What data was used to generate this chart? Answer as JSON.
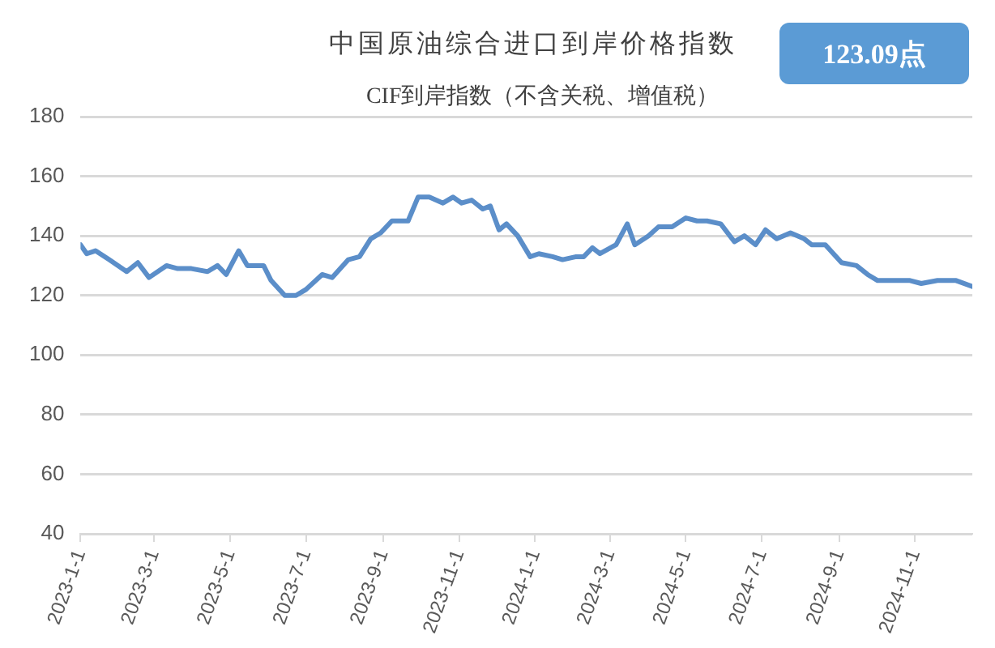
{
  "chart_data": {
    "type": "line",
    "title": "中国原油综合进口到岸价格指数",
    "subtitle": "CIF到岸指数（不含关税、增值税）",
    "annotations": [
      "123.09点"
    ],
    "x": [
      "2023-01-01",
      "2023-01-06",
      "2023-01-13",
      "2023-01-24",
      "2023-02-07",
      "2023-02-16",
      "2023-02-25",
      "2023-03-11",
      "2023-03-20",
      "2023-03-31",
      "2023-04-13",
      "2023-04-21",
      "2023-04-28",
      "2023-05-08",
      "2023-05-15",
      "2023-05-28",
      "2023-06-03",
      "2023-06-14",
      "2023-06-23",
      "2023-07-01",
      "2023-07-14",
      "2023-07-22",
      "2023-08-04",
      "2023-08-13",
      "2023-08-22",
      "2023-08-30",
      "2023-09-08",
      "2023-09-21",
      "2023-09-29",
      "2023-10-08",
      "2023-10-19",
      "2023-10-27",
      "2023-11-03",
      "2023-11-11",
      "2023-11-20",
      "2023-11-26",
      "2023-12-03",
      "2023-12-09",
      "2023-12-18",
      "2023-12-28",
      "2024-01-04",
      "2024-01-15",
      "2024-01-23",
      "2024-02-03",
      "2024-02-09",
      "2024-02-16",
      "2024-02-22",
      "2024-03-06",
      "2024-03-15",
      "2024-03-21",
      "2024-04-01",
      "2024-04-09",
      "2024-04-20",
      "2024-05-01",
      "2024-05-10",
      "2024-05-18",
      "2024-05-29",
      "2024-06-09",
      "2024-06-17",
      "2024-06-26",
      "2024-07-04",
      "2024-07-13",
      "2024-07-24",
      "2024-08-04",
      "2024-08-10",
      "2024-08-21",
      "2024-09-03",
      "2024-09-15",
      "2024-09-24",
      "2024-10-02",
      "2024-10-15",
      "2024-10-28",
      "2024-11-06",
      "2024-11-19",
      "2024-12-04",
      "2024-12-17"
    ],
    "values": [
      137,
      134,
      135,
      132,
      128,
      131,
      126,
      130,
      129,
      129,
      128,
      130,
      127,
      135,
      130,
      130,
      125,
      120,
      120,
      122,
      127,
      126,
      132,
      133,
      139,
      141,
      145,
      145,
      153,
      153,
      151,
      153,
      151,
      152,
      149,
      150,
      142,
      144,
      140,
      133,
      134,
      133,
      132,
      133,
      133,
      136,
      134,
      137,
      144,
      137,
      140,
      143,
      143,
      146,
      145,
      145,
      144,
      138,
      140,
      137,
      142,
      139,
      141,
      139,
      137,
      137,
      131,
      130,
      127,
      125,
      125,
      125,
      124,
      125,
      125,
      123
    ],
    "color": "#5b8ec9",
    "xlim": [
      "2023-01-01",
      "2024-12-17"
    ],
    "xticks": [
      {
        "value": "2023-01-01",
        "label": "2023-1-1"
      },
      {
        "value": "2023-03-01",
        "label": "2023-3-1"
      },
      {
        "value": "2023-05-01",
        "label": "2023-5-1"
      },
      {
        "value": "2023-07-01",
        "label": "2023-7-1"
      },
      {
        "value": "2023-09-01",
        "label": "2023-9-1"
      },
      {
        "value": "2023-11-01",
        "label": "2023-11-1"
      },
      {
        "value": "2024-01-01",
        "label": "2024-1-1"
      },
      {
        "value": "2024-03-01",
        "label": "2024-3-1"
      },
      {
        "value": "2024-05-01",
        "label": "2024-5-1"
      },
      {
        "value": "2024-07-01",
        "label": "2024-7-1"
      },
      {
        "value": "2024-09-01",
        "label": "2024-9-1"
      },
      {
        "value": "2024-11-01",
        "label": "2024-11-1"
      }
    ],
    "ylim": [
      40,
      180
    ],
    "yticks": [
      40,
      60,
      80,
      100,
      120,
      140,
      160,
      180
    ],
    "grid": "y"
  }
}
